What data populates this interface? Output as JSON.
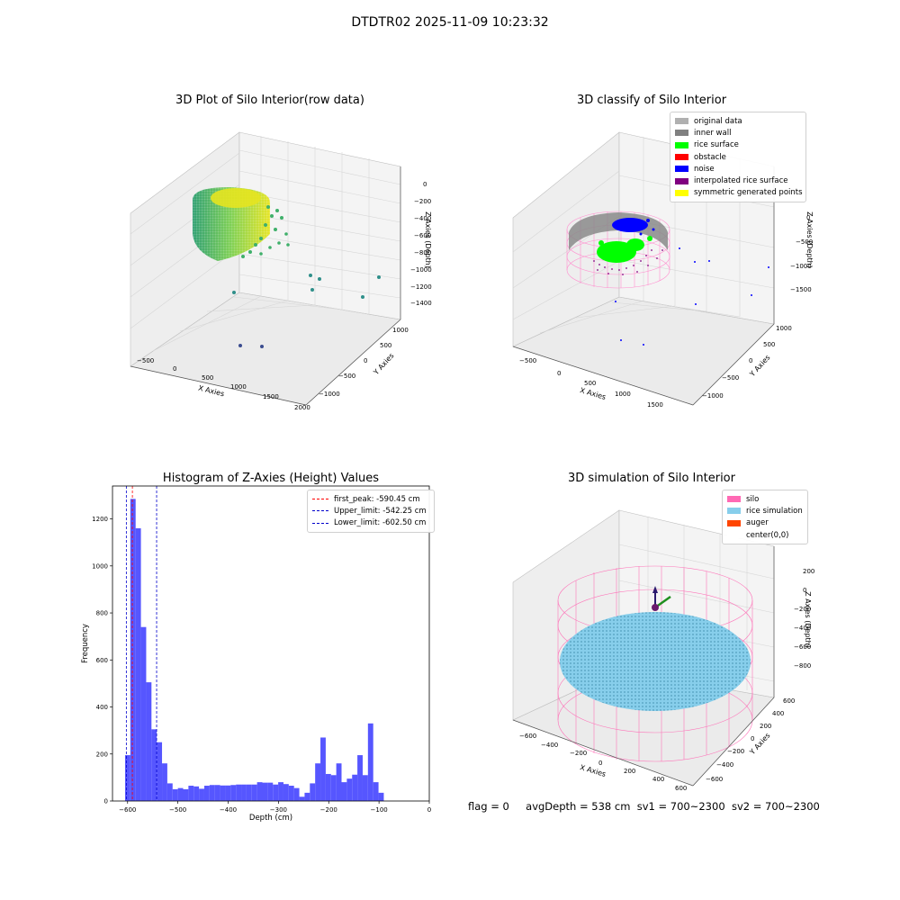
{
  "suptitle": "DTDTR02 2025-11-09 10:23:32",
  "footer": {
    "flag": "flag = 0",
    "avg_depth": "avgDepth = 538 cm",
    "sv1": "sv1 = 700~2300",
    "sv2": "sv2 = 700~2300"
  },
  "panels": {
    "raw": {
      "title": "3D Plot of Silo Interior(row data)",
      "xlabel": "X Axies",
      "ylabel": "Y Axies",
      "zlabel": "Z Axies (Depth)",
      "x_ticks": [
        "−500",
        "0",
        "500",
        "1000",
        "1500",
        "2000"
      ],
      "y_ticks": [
        "1000",
        "500",
        "0",
        "−500",
        "−1000"
      ],
      "z_ticks": [
        "0",
        "−200",
        "−400",
        "−600",
        "−800",
        "−1000",
        "−1200",
        "−1400"
      ]
    },
    "classify": {
      "title": "3D classify of Silo Interior",
      "xlabel": "X Axies",
      "ylabel": "Y Axies",
      "zlabel": "Z Axies (Depth)",
      "x_ticks": [
        "−500",
        "0",
        "500",
        "1000",
        "1500"
      ],
      "y_ticks": [
        "1000",
        "500",
        "0",
        "−500",
        "−1000"
      ],
      "z_ticks": [
        "0",
        "−500",
        "−1000",
        "−1500"
      ],
      "legend": [
        {
          "label": "original data",
          "color": "#b0b0b0"
        },
        {
          "label": "inner wall",
          "color": "#808080"
        },
        {
          "label": "rice surface",
          "color": "#00ff00"
        },
        {
          "label": "obstacle",
          "color": "#ff0000"
        },
        {
          "label": "noise",
          "color": "#0000ff"
        },
        {
          "label": "interpolated rice surface",
          "color": "#800080"
        },
        {
          "label": "symmetric generated points",
          "color": "#ffff00"
        }
      ]
    },
    "simulation": {
      "title": "3D simulation of Silo Interior",
      "xlabel": "X Axies",
      "ylabel": "Y Axies",
      "zlabel": "Z Axies (Depth)",
      "x_ticks": [
        "−600",
        "−400",
        "−200",
        "0",
        "200",
        "400",
        "600"
      ],
      "y_ticks": [
        "600",
        "400",
        "200",
        "0",
        "−200",
        "−400",
        "−600"
      ],
      "z_ticks": [
        "200",
        "0",
        "−200",
        "−400",
        "−600",
        "−800"
      ],
      "legend": [
        {
          "label": "silo",
          "color": "#ff69b4"
        },
        {
          "label": "rice simulation",
          "color": "#87ceeb"
        },
        {
          "label": "auger",
          "color": "#ff4500"
        },
        {
          "label": "center(0,0)",
          "color": "#ffffff"
        }
      ]
    }
  },
  "chart_data": {
    "type": "bar",
    "title": "Histogram of Z-Axies (Height) Values",
    "xlabel": "Depth (cm)",
    "ylabel": "Frequency",
    "xlim": [
      -630,
      0
    ],
    "ylim": [
      0,
      1340
    ],
    "x_ticks": [
      -600,
      -500,
      -400,
      -300,
      -200,
      -100,
      0
    ],
    "y_ticks": [
      0,
      200,
      400,
      600,
      800,
      1000,
      1200
    ],
    "bar_color": "#4d4dff",
    "bin_start": -605,
    "bin_width": 10.5,
    "values": [
      195,
      1285,
      1160,
      740,
      505,
      305,
      250,
      160,
      75,
      50,
      55,
      50,
      65,
      62,
      52,
      65,
      68,
      68,
      66,
      66,
      68,
      70,
      70,
      70,
      70,
      80,
      78,
      78,
      70,
      80,
      72,
      65,
      55,
      18,
      35,
      75,
      160,
      270,
      115,
      110,
      160,
      80,
      95,
      112,
      195,
      110,
      330,
      80,
      35
    ],
    "vlines": [
      {
        "label": "first_peak: -590.45 cm",
        "x": -590.45,
        "color": "#ff0000"
      },
      {
        "label": "Upper_limit: -542.25 cm",
        "x": -542.25,
        "color": "#0000cc"
      },
      {
        "label": "Lower_limit: -602.50 cm",
        "x": -602.5,
        "color": "#0000cc"
      }
    ]
  }
}
